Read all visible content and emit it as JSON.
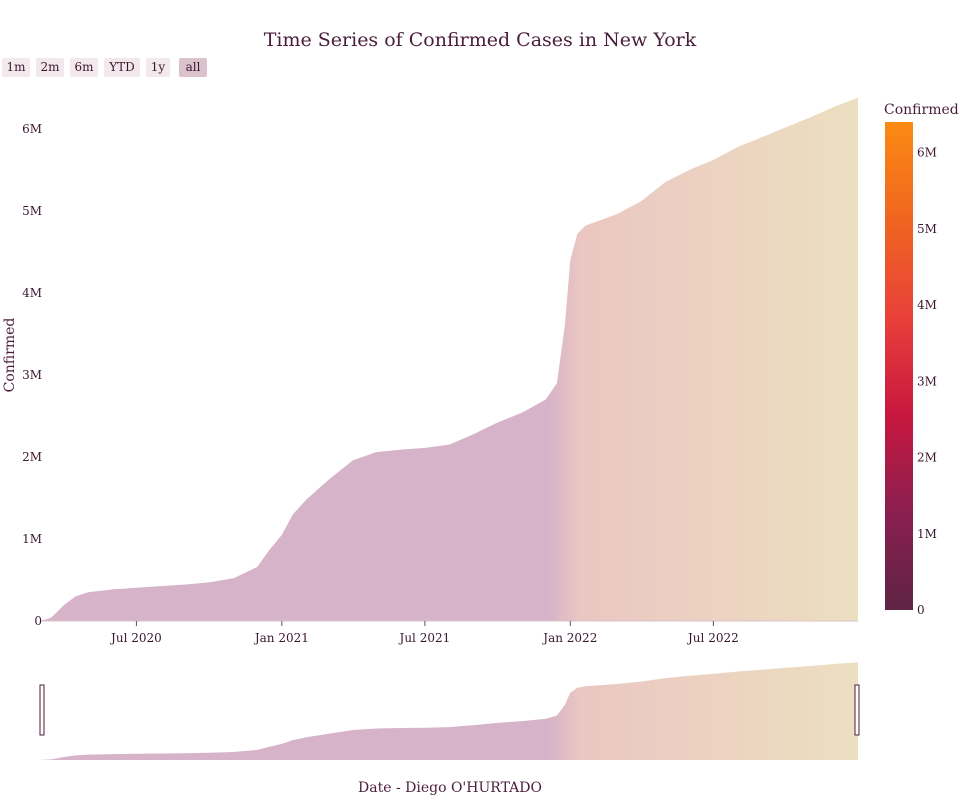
{
  "range_selector": {
    "buttons": [
      {
        "label": "1m",
        "active": false
      },
      {
        "label": "2m",
        "active": false
      },
      {
        "label": "6m",
        "active": false
      },
      {
        "label": "YTD",
        "active": false
      },
      {
        "label": "1y",
        "active": false
      },
      {
        "label": "all",
        "active": true
      }
    ]
  },
  "chart_data": {
    "type": "area",
    "title": "Time Series of Confirmed Cases in New York",
    "xlabel": "Date - Diego O'HURTADO",
    "ylabel": "Confirmed",
    "x_ticks": [
      "Jul 2020",
      "Jan 2021",
      "Jul 2021",
      "Jan 2022",
      "Jul 2022"
    ],
    "y_ticks": [
      "0",
      "1M",
      "2M",
      "3M",
      "4M",
      "5M",
      "6M"
    ],
    "ylim": [
      0,
      6400000
    ],
    "xlim": [
      "2020-03-01",
      "2022-12-31"
    ],
    "colorbar": {
      "title": "Confirmed",
      "ticks": [
        "0",
        "1M",
        "2M",
        "3M",
        "4M",
        "5M",
        "6M"
      ],
      "range": [
        0,
        6400000
      ],
      "colors": [
        "#5e2443",
        "#8a1f4f",
        "#c8173f",
        "#e8413a",
        "#f06520",
        "#fb8a12"
      ]
    },
    "fill_colors": [
      "#d6b3c8",
      "#ebc6c2",
      "#ecdfc0"
    ],
    "series": [
      {
        "x": [
          "2020-03-01",
          "2020-03-15",
          "2020-04-01",
          "2020-04-15",
          "2020-05-01",
          "2020-06-01",
          "2020-07-01",
          "2020-08-01",
          "2020-09-01",
          "2020-10-01",
          "2020-11-01",
          "2020-12-01",
          "2020-12-15",
          "2021-01-01",
          "2021-01-15",
          "2021-02-01",
          "2021-03-01",
          "2021-04-01",
          "2021-05-01",
          "2021-06-01",
          "2021-07-01",
          "2021-08-01",
          "2021-09-01",
          "2021-10-01",
          "2021-11-01",
          "2021-12-01",
          "2021-12-15",
          "2021-12-25",
          "2022-01-01",
          "2022-01-10",
          "2022-01-20",
          "2022-02-01",
          "2022-03-01",
          "2022-04-01",
          "2022-05-01",
          "2022-06-01",
          "2022-07-01",
          "2022-08-01",
          "2022-09-01",
          "2022-10-01",
          "2022-11-01",
          "2022-12-01",
          "2022-12-31"
        ],
        "y": [
          0,
          40000,
          200000,
          300000,
          350000,
          385000,
          405000,
          425000,
          445000,
          470000,
          520000,
          660000,
          850000,
          1050000,
          1300000,
          1480000,
          1720000,
          1960000,
          2060000,
          2090000,
          2110000,
          2150000,
          2280000,
          2420000,
          2540000,
          2700000,
          2900000,
          3600000,
          4400000,
          4720000,
          4820000,
          4860000,
          4960000,
          5120000,
          5350000,
          5500000,
          5620000,
          5780000,
          5900000,
          6020000,
          6140000,
          6270000,
          6380000
        ]
      }
    ]
  }
}
